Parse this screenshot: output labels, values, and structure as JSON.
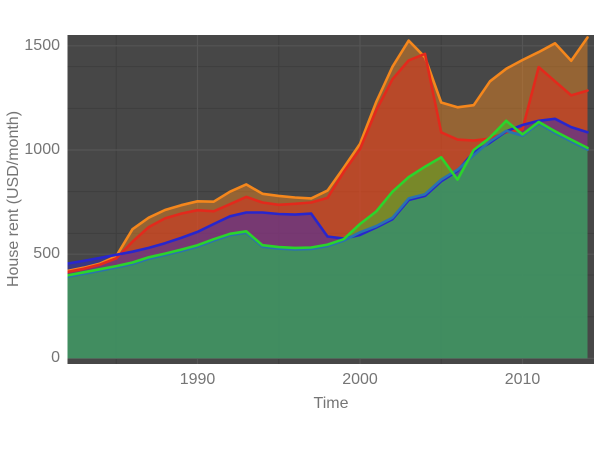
{
  "chart_data": {
    "type": "area",
    "title": "",
    "xlabel": "Time",
    "ylabel": "House rent (USD/month)",
    "x_ticks": [
      1990,
      2000,
      2010
    ],
    "y_ticks": [
      0,
      500,
      1000,
      1500
    ],
    "x_minor_gridlines": [
      1985,
      1995,
      2005
    ],
    "y_minor_gridlines": [
      200,
      400,
      600,
      800,
      1200,
      1400
    ],
    "x_range": [
      1982,
      2014.4
    ],
    "y_range": [
      -27,
      1552
    ],
    "grid": "on",
    "legend": "none",
    "fill_opacity": 0.45,
    "x": [
      1982,
      1983,
      1984,
      1985,
      1986,
      1987,
      1988,
      1989,
      1990,
      1991,
      1992,
      1993,
      1994,
      1995,
      1996,
      1997,
      1998,
      1999,
      2000,
      2001,
      2002,
      2003,
      2004,
      2005,
      2006,
      2007,
      2008,
      2009,
      2010,
      2011,
      2012,
      2013,
      2014
    ],
    "series": [
      {
        "name": "orange-line",
        "color": "#f5871c",
        "values": [
          420,
          435,
          455,
          490,
          620,
          675,
          712,
          735,
          754,
          752,
          800,
          835,
          790,
          780,
          772,
          768,
          805,
          915,
          1030,
          1230,
          1400,
          1525,
          1445,
          1228,
          1205,
          1215,
          1330,
          1390,
          1432,
          1470,
          1512,
          1428,
          1540
        ]
      },
      {
        "name": "red-line",
        "color": "#e3291c",
        "values": [
          415,
          430,
          450,
          480,
          560,
          630,
          672,
          695,
          711,
          706,
          740,
          775,
          748,
          737,
          742,
          748,
          770,
          895,
          1005,
          1190,
          1340,
          1430,
          1462,
          1085,
          1050,
          1045,
          1055,
          1085,
          1100,
          1398,
          1330,
          1262,
          1285
        ]
      },
      {
        "name": "blue-line",
        "color": "#2826cd",
        "values": [
          455,
          468,
          482,
          497,
          512,
          530,
          553,
          578,
          607,
          645,
          682,
          700,
          700,
          693,
          690,
          695,
          585,
          575,
          592,
          628,
          668,
          760,
          780,
          850,
          900,
          990,
          1035,
          1090,
          1120,
          1140,
          1150,
          1110,
          1085
        ]
      },
      {
        "name": "steelblue-line",
        "color": "#2a72ae",
        "values": [
          392,
          406,
          421,
          436,
          453,
          478,
          496,
          515,
          536,
          565,
          591,
          603,
          536,
          527,
          523,
          525,
          539,
          565,
          605,
          635,
          675,
          768,
          788,
          858,
          905,
          975,
          1042,
          1092,
          1068,
          1128,
          1082,
          1042,
          1002
        ]
      },
      {
        "name": "green-line",
        "color": "#2bd42b",
        "values": [
          398,
          413,
          428,
          443,
          460,
          485,
          503,
          522,
          543,
          572,
          598,
          610,
          543,
          534,
          530,
          532,
          546,
          572,
          645,
          705,
          800,
          870,
          920,
          965,
          858,
          1000,
          1060,
          1140,
          1075,
          1135,
          1090,
          1050,
          1010
        ]
      }
    ],
    "colors": {
      "outer_background": "#ffffff",
      "panel_background": "#474747",
      "grid_major": "#555555",
      "grid_minor": "#3e3e3e",
      "axis_label": "#757575"
    }
  }
}
